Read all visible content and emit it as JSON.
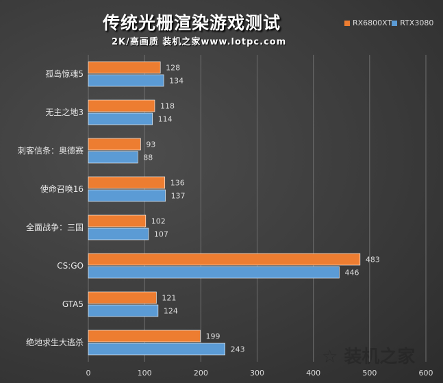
{
  "chart_data": {
    "type": "bar",
    "orientation": "horizontal",
    "title": "传统光栅渲染游戏测试",
    "subtitle": "2K/高画质 装机之家www.lotpc.com",
    "categories": [
      "孤岛惊魂5",
      "无主之地3",
      "刺客信条：奥德赛",
      "使命召唤16",
      "全面战争：三国",
      "CS:GO",
      "GTA5",
      "绝地求生大逃杀"
    ],
    "series": [
      {
        "name": "RX6800XT",
        "color": "#ed7d31",
        "values": [
          128,
          118,
          93,
          136,
          102,
          483,
          121,
          199
        ]
      },
      {
        "name": "RTX3080",
        "color": "#5b9bd5",
        "values": [
          134,
          114,
          88,
          137,
          107,
          446,
          124,
          243
        ]
      }
    ],
    "xlim": [
      0,
      600
    ],
    "xticks": [
      0,
      100,
      200,
      300,
      400,
      500,
      600
    ],
    "grid": true,
    "legend": "top-right"
  },
  "watermark": "装机之家 www.lotpc.com"
}
